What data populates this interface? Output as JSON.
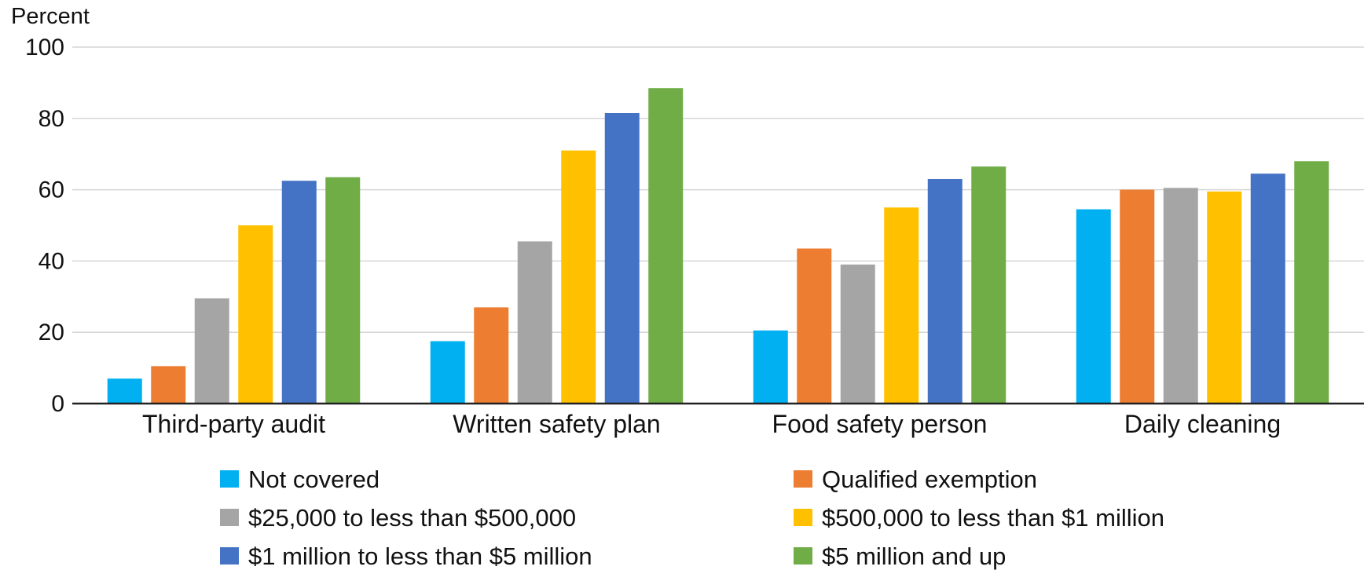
{
  "chart_data": {
    "type": "bar",
    "title": "",
    "ylabel": "Percent",
    "xlabel": "",
    "ylim": [
      0,
      100
    ],
    "yticks": [
      "0",
      "20",
      "40",
      "60",
      "80",
      "100"
    ],
    "grid": true,
    "legend_position": "bottom",
    "categories": [
      "Third-party audit",
      "Written safety plan",
      "Food safety person",
      "Daily cleaning"
    ],
    "series": [
      {
        "name": "Not covered",
        "color": "#00b0f0",
        "values": [
          7,
          17.5,
          20.5,
          54.5
        ]
      },
      {
        "name": "Qualified exemption",
        "color": "#ed7d31",
        "values": [
          10.5,
          27,
          43.5,
          60
        ]
      },
      {
        "name": "$25,000 to less than $500,000",
        "color": "#a5a5a5",
        "values": [
          29.5,
          45.5,
          39,
          60.5
        ]
      },
      {
        "name": "$500,000 to less than $1 million",
        "color": "#ffc000",
        "values": [
          50,
          71,
          55,
          59.5
        ]
      },
      {
        "name": "$1 million to less than $5 million",
        "color": "#4472c4",
        "values": [
          62.5,
          81.5,
          63,
          64.5
        ]
      },
      {
        "name": "$5 million and up",
        "color": "#70ad47",
        "values": [
          63.5,
          88.5,
          66.5,
          68
        ]
      }
    ]
  }
}
